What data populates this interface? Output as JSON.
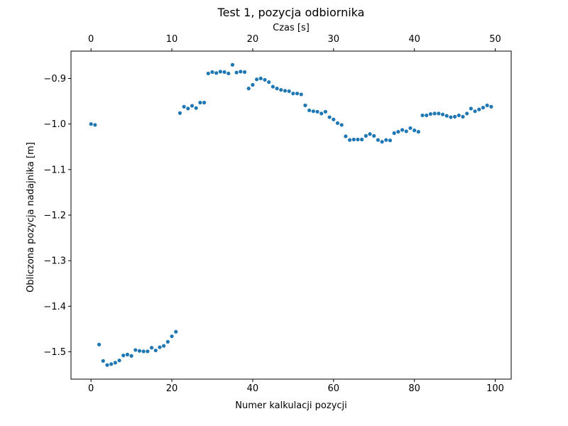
{
  "chart_data": {
    "type": "scatter",
    "title": "Test 1, pozycja odbiornika",
    "xlabel": "Numer kalkulacji pozycji",
    "ylabel": "Obliczona pozycja nadajnika [m]",
    "x2label": "Czas [s]",
    "xlim": [
      -4.95,
      103.95
    ],
    "ylim": [
      -1.56,
      -0.84
    ],
    "x2lim": [
      -2.475,
      51.975
    ],
    "x_ticks": [
      0,
      20,
      40,
      60,
      80,
      100
    ],
    "x_tick_labels": [
      "0",
      "20",
      "40",
      "60",
      "80",
      "100"
    ],
    "x2_ticks": [
      0,
      10,
      20,
      30,
      40,
      50
    ],
    "x2_tick_labels": [
      "0",
      "10",
      "20",
      "30",
      "40",
      "50"
    ],
    "y_ticks": [
      -1.5,
      -1.4,
      -1.3,
      -1.2,
      -1.1,
      -1.0,
      -0.9
    ],
    "y_tick_labels": [
      "−1.5",
      "−1.4",
      "−1.3",
      "−1.2",
      "−1.1",
      "−1.0",
      "−0.9"
    ],
    "grid": false,
    "marker_color": "#1f77b4",
    "series": [
      {
        "x": [
          0,
          1,
          2,
          3,
          4,
          5,
          6,
          7,
          8,
          9,
          10,
          11,
          12,
          13,
          14,
          15,
          16,
          17,
          18,
          19,
          20,
          21,
          22,
          23,
          24,
          25,
          26,
          27,
          28,
          29,
          30,
          31,
          32,
          33,
          34,
          35,
          36,
          37,
          38,
          39,
          40,
          41,
          42,
          43,
          44,
          45,
          46,
          47,
          48,
          49,
          50,
          51,
          52,
          53,
          54,
          55,
          56,
          57,
          58,
          59,
          60,
          61,
          62,
          63,
          64,
          65,
          66,
          67,
          68,
          69,
          70,
          71,
          72,
          73,
          74,
          75,
          76,
          77,
          78,
          79,
          80,
          81,
          82,
          83,
          84,
          85,
          86,
          87,
          88,
          89,
          90,
          91,
          92,
          93,
          94,
          95,
          96,
          97,
          98,
          99
        ],
        "y": [
          -1.0,
          -1.002,
          -1.484,
          -1.52,
          -1.529,
          -1.527,
          -1.524,
          -1.519,
          -1.508,
          -1.506,
          -1.509,
          -1.496,
          -1.498,
          -1.499,
          -1.499,
          -1.491,
          -1.497,
          -1.49,
          -1.487,
          -1.478,
          -1.466,
          -1.456,
          -0.976,
          -0.962,
          -0.966,
          -0.96,
          -0.965,
          -0.953,
          -0.953,
          -0.889,
          -0.886,
          -0.888,
          -0.885,
          -0.886,
          -0.889,
          -0.87,
          -0.887,
          -0.885,
          -0.886,
          -0.922,
          -0.914,
          -0.902,
          -0.9,
          -0.903,
          -0.908,
          -0.918,
          -0.922,
          -0.925,
          -0.927,
          -0.928,
          -0.933,
          -0.933,
          -0.935,
          -0.959,
          -0.97,
          -0.972,
          -0.973,
          -0.977,
          -0.973,
          -0.985,
          -0.99,
          -0.998,
          -1.002,
          -1.027,
          -1.035,
          -1.034,
          -1.034,
          -1.034,
          -1.026,
          -1.022,
          -1.026,
          -1.035,
          -1.039,
          -1.035,
          -1.036,
          -1.02,
          -1.017,
          -1.013,
          -1.016,
          -1.009,
          -1.014,
          -1.017,
          -0.981,
          -0.981,
          -0.978,
          -0.977,
          -0.977,
          -0.979,
          -0.982,
          -0.985,
          -0.984,
          -0.981,
          -0.984,
          -0.977,
          -0.966,
          -0.972,
          -0.968,
          -0.964,
          -0.959,
          -0.962
        ]
      }
    ]
  }
}
